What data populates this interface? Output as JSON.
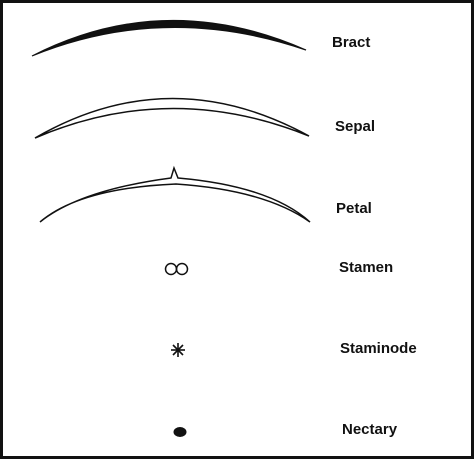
{
  "labels": [
    "Bract",
    "Sepal",
    "Petal",
    "Stamen",
    "Staminode",
    "Nectary"
  ]
}
